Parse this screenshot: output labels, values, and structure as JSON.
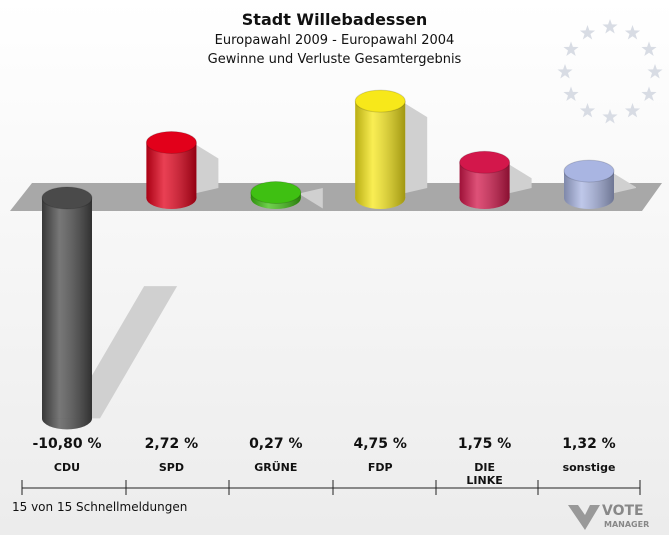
{
  "chart_data": {
    "type": "bar",
    "title": "Stadt Willebadessen",
    "subtitle": [
      "Europawahl 2009 - Europawahl 2004",
      "Gewinne und Verluste Gesamtergebnis"
    ],
    "categories": [
      "CDU",
      "SPD",
      "GRÜNE",
      "FDP",
      "DIE LINKE",
      "sonstige"
    ],
    "series": [
      {
        "name": "Gewinne und Verluste",
        "colors": [
          "#4a4a4a",
          "#e2001a",
          "#3fc012",
          "#f7e81a",
          "#d3174b",
          "#a9b5e2"
        ],
        "values": [
          -10.8,
          2.72,
          0.27,
          4.75,
          1.75,
          1.32
        ],
        "value_labels": [
          "-10,80 %",
          "2,72 %",
          "0,27 %",
          "4,75 %",
          "1,75 %",
          "1,32 %"
        ]
      }
    ],
    "footer": "15 von 15 Schnellmeldungen",
    "logo": [
      "VOTE",
      "MANAGER"
    ]
  }
}
